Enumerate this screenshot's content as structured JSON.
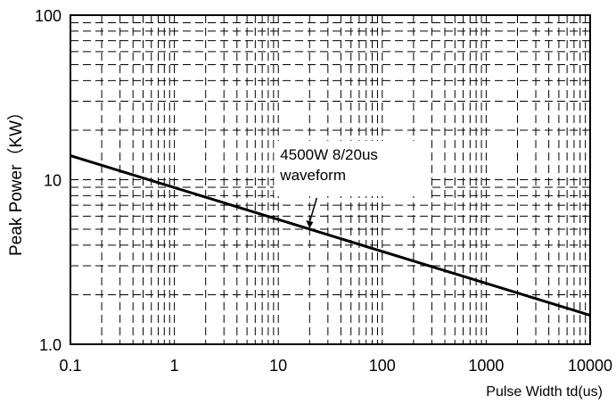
{
  "chart_data": {
    "type": "line",
    "xlabel": "Pulse Width td(us)",
    "ylabel": "Peak Power（KW）",
    "x_scale": "log",
    "y_scale": "log",
    "xlim": [
      0.1,
      10000
    ],
    "ylim": [
      1,
      100
    ],
    "x_ticks": [
      0.1,
      1,
      10,
      100,
      1000,
      10000
    ],
    "x_tick_labels": [
      "0.1",
      "1",
      "10",
      "100",
      "1000",
      "10000"
    ],
    "y_ticks": [
      1,
      10,
      100
    ],
    "y_tick_labels": [
      "1.0",
      "10",
      "100"
    ],
    "grid": "dashed minor and major gridlines",
    "series": [
      {
        "color": "#000000",
        "x": [
          0.1,
          10000
        ],
        "y": [
          14.0,
          1.5
        ]
      }
    ],
    "annotation": {
      "lines": [
        "4500W 8/20us",
        "waveform"
      ],
      "points_to": {
        "x": 20,
        "y": 5.0
      }
    }
  }
}
